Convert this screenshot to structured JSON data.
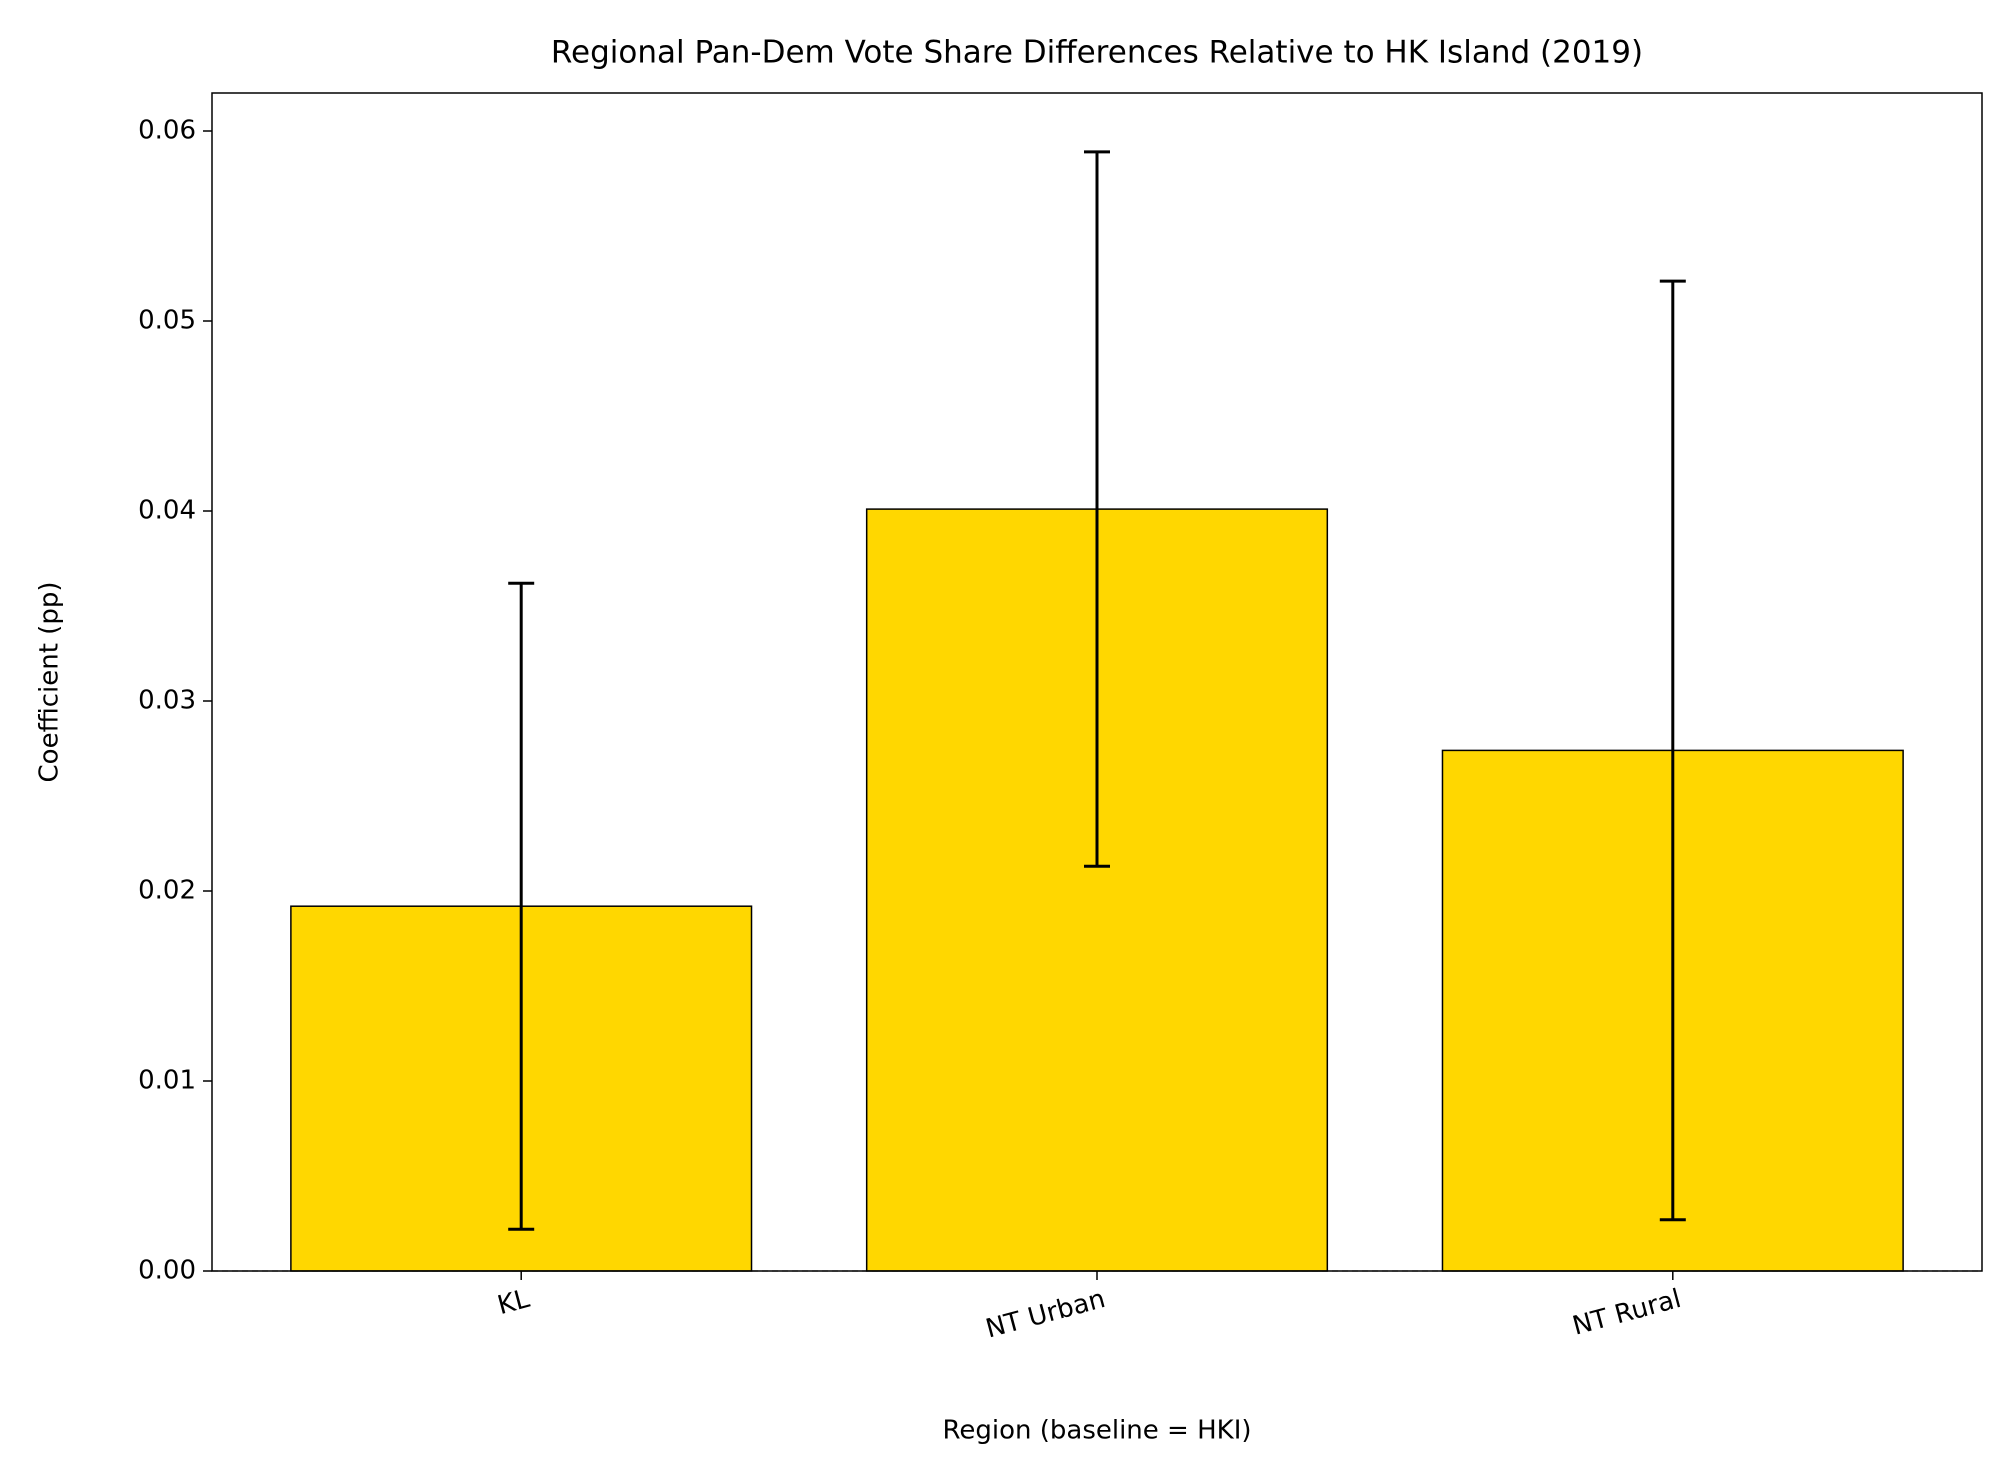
{
  "chart_data": {
    "type": "bar",
    "title": "Regional Pan-Dem Vote Share Differences Relative to HK Island (2019)",
    "xlabel": "Region (baseline = HKI)",
    "ylabel": "Coefficient (pp)",
    "categories": [
      "KL",
      "NT Urban",
      "NT Rural"
    ],
    "values": [
      0.0192,
      0.0401,
      0.0274
    ],
    "errors": [
      0.017,
      0.0188,
      0.0247
    ],
    "color": "#ffd700",
    "edgecolor": "#000000",
    "ylim": [
      0,
      0.062
    ],
    "yticks": [
      {
        "value": 0,
        "label": "0.00"
      },
      0.01,
      0.02,
      0.03,
      0.04,
      0.05,
      0.06
    ],
    "reference_line": 0,
    "grid": false
  }
}
